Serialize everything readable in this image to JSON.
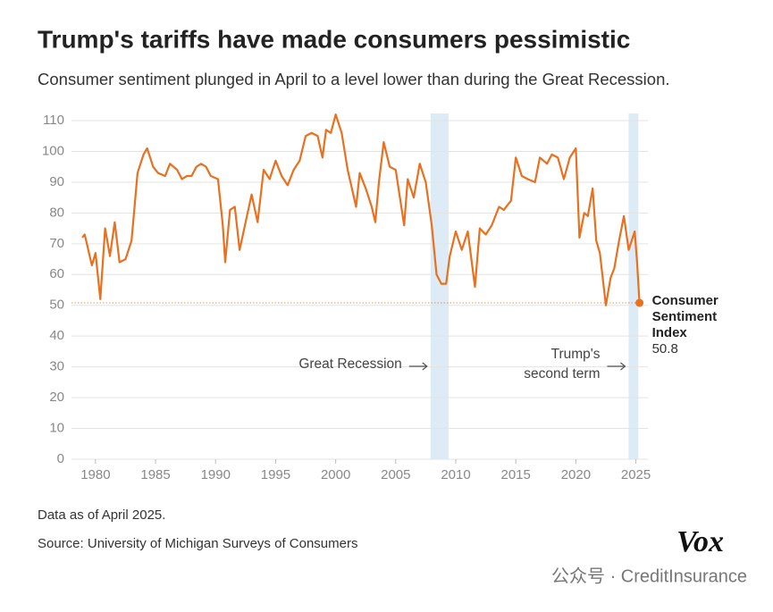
{
  "chart_data": {
    "type": "line",
    "title": "Trump's tariffs have made consumers pessimistic",
    "subtitle": "Consumer sentiment plunged in April to a level lower than during the Great Recession.",
    "x": [
      1978.9,
      1979.1,
      1979.4,
      1979.7,
      1980.0,
      1980.4,
      1980.8,
      1981.2,
      1981.6,
      1982.0,
      1982.5,
      1983.0,
      1983.5,
      1984.0,
      1984.3,
      1984.8,
      1985.2,
      1985.8,
      1986.2,
      1986.8,
      1987.2,
      1987.6,
      1988.0,
      1988.4,
      1988.8,
      1989.2,
      1989.6,
      1990.2,
      1990.6,
      1990.8,
      1991.2,
      1991.6,
      1992.0,
      1992.5,
      1993.0,
      1993.5,
      1994.0,
      1994.5,
      1995.0,
      1995.5,
      1996.0,
      1996.5,
      1997.0,
      1997.5,
      1998.0,
      1998.5,
      1998.9,
      1999.2,
      1999.6,
      2000.0,
      2000.5,
      2001.0,
      2001.7,
      2002.0,
      2002.5,
      2003.0,
      2003.3,
      2003.6,
      2004.0,
      2004.5,
      2005.0,
      2005.7,
      2006.0,
      2006.5,
      2007.0,
      2007.5,
      2008.0,
      2008.4,
      2008.8,
      2009.2,
      2009.5,
      2010.0,
      2010.5,
      2011.0,
      2011.6,
      2012.0,
      2012.5,
      2013.0,
      2013.6,
      2014.0,
      2014.6,
      2015.0,
      2015.5,
      2016.0,
      2016.6,
      2017.0,
      2017.6,
      2018.0,
      2018.5,
      2019.0,
      2019.5,
      2020.0,
      2020.3,
      2020.7,
      2021.0,
      2021.4,
      2021.7,
      2022.0,
      2022.5,
      2022.9,
      2023.2,
      2023.6,
      2024.0,
      2024.4,
      2024.9,
      2025.1,
      2025.3
    ],
    "series": [
      {
        "name": "Consumer Sentiment Index",
        "color": "#e8701f",
        "values": [
          72,
          73,
          68,
          63,
          67,
          52,
          75,
          66,
          77,
          64,
          65,
          71,
          93,
          99,
          101,
          95,
          93,
          92,
          96,
          94,
          91,
          92,
          92,
          95,
          96,
          95,
          92,
          91,
          76,
          64,
          81,
          82,
          68,
          77,
          86,
          77,
          94,
          91,
          97,
          92,
          89,
          94,
          97,
          105,
          106,
          105,
          98,
          107,
          106,
          112,
          106,
          94,
          82,
          93,
          88,
          82,
          77,
          90,
          103,
          95,
          94,
          76,
          91,
          85,
          96,
          90,
          76,
          60,
          57,
          57,
          66,
          74,
          68,
          74,
          56,
          75,
          73,
          76,
          82,
          81,
          84,
          98,
          92,
          91,
          90,
          98,
          96,
          99,
          98,
          91,
          98,
          101,
          72,
          80,
          79,
          88,
          71,
          67,
          50,
          59,
          62,
          71,
          79,
          68,
          74,
          64,
          50.8
        ]
      }
    ],
    "xlim": [
      1978,
      2026
    ],
    "ylim": [
      0,
      110
    ],
    "xticks": [
      1980,
      1985,
      1990,
      1995,
      2000,
      2005,
      2010,
      2015,
      2020,
      2025
    ],
    "yticks": [
      0,
      10,
      20,
      30,
      40,
      50,
      60,
      70,
      80,
      90,
      100,
      110
    ],
    "grid": true,
    "shaded": [
      {
        "lines": [
          "Great Recession"
        ],
        "range": [
          2007.9,
          2009.4
        ],
        "color": "#dcebf5"
      },
      {
        "lines": [
          "Trump's",
          "second term"
        ],
        "range": [
          2024.4,
          2025.2
        ],
        "color": "#dcebf5"
      }
    ],
    "end_label": [
      "Consumer",
      "Sentiment",
      "Index"
    ],
    "note": "Data as of April 2025.",
    "source": "Source: University of Michigan Surveys of Consumers",
    "logo": "Vox",
    "watermark": "公众号 · CreditInsurance"
  }
}
